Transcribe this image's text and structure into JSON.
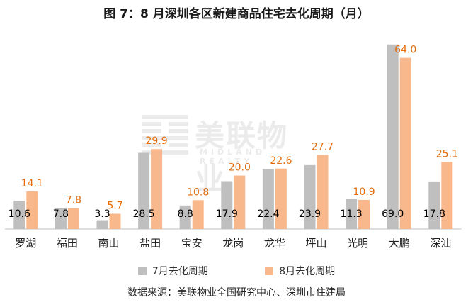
{
  "title": "图 7：8 月深圳各区新建商品住宅去化周期（月）",
  "source": "数据来源：美联物业全国研究中心、深圳市住建局",
  "watermark": {
    "text": "美联物业",
    "sub": "MIDLAND REALTY"
  },
  "colors": {
    "july": "#BFBFBF",
    "august": "#F8B88B",
    "august_label": "#E46C0A",
    "july_label": "#000000"
  },
  "chart_data": {
    "type": "bar",
    "title": "图 7：8 月深圳各区新建商品住宅去化周期（月）",
    "xlabel": "",
    "ylabel": "",
    "ylim": [
      0,
      70
    ],
    "grid": false,
    "legend_position": "bottom",
    "categories": [
      "罗湖",
      "福田",
      "南山",
      "盐田",
      "宝安",
      "龙岗",
      "龙华",
      "坪山",
      "光明",
      "大鹏",
      "深汕"
    ],
    "series": [
      {
        "name": "7月去化周期",
        "values": [
          10.6,
          7.8,
          3.3,
          28.5,
          8.8,
          17.9,
          22.4,
          23.9,
          11.3,
          69.0,
          17.8
        ]
      },
      {
        "name": "8月去化周期",
        "values": [
          14.1,
          7.8,
          5.7,
          29.9,
          10.8,
          20.0,
          22.6,
          27.7,
          10.9,
          64.0,
          25.1
        ]
      }
    ]
  }
}
